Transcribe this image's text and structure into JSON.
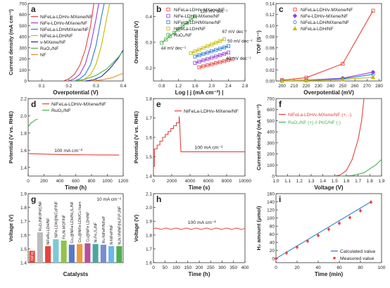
{
  "panels": [
    {
      "id": "a",
      "letter": "a",
      "type": "line",
      "ylabel": "Current density (mA cm⁻²)",
      "xlabel": "Overpotential (V)",
      "xlim": [
        0.05,
        0.4
      ],
      "ylim": [
        0,
        700
      ],
      "xticks": [
        0.1,
        0.2,
        0.3,
        0.4
      ],
      "xtick_labels": [
        "0.1",
        "0.2",
        "0.3",
        "0.4"
      ],
      "yticks": [
        0,
        100,
        200,
        300,
        400,
        500,
        600,
        700
      ],
      "ytick_labels": [
        "0",
        "100",
        "200",
        "300",
        "400",
        "500",
        "600",
        "700"
      ],
      "legend": "top-left",
      "series": [
        {
          "name": "NiFeLa-LDH/v-MXene/NF",
          "color": "#e8413c",
          "x": [
            0.18,
            0.2,
            0.22,
            0.24,
            0.26,
            0.28,
            0.292
          ],
          "y": [
            0,
            20,
            60,
            140,
            280,
            500,
            700
          ]
        },
        {
          "name": "NiFe-LDH/v-MXene/NF",
          "color": "#9a3fd0",
          "x": [
            0.2,
            0.22,
            0.24,
            0.26,
            0.28,
            0.3,
            0.31
          ],
          "y": [
            0,
            20,
            60,
            150,
            320,
            560,
            700
          ]
        },
        {
          "name": "NiFeLa-LDH/MXene/NF",
          "color": "#2d7ad6",
          "x": [
            0.22,
            0.24,
            0.26,
            0.28,
            0.3,
            0.32,
            0.33
          ],
          "y": [
            0,
            20,
            60,
            150,
            320,
            580,
            700
          ]
        },
        {
          "name": "NiFeLa-LDH/NF",
          "color": "#c7b800",
          "x": [
            0.24,
            0.26,
            0.28,
            0.3,
            0.32,
            0.34,
            0.35
          ],
          "y": [
            0,
            20,
            60,
            150,
            320,
            580,
            700
          ]
        },
        {
          "name": "v-MXene/NF",
          "color": "#1d2c9c",
          "x": [
            0.26,
            0.29,
            0.32,
            0.35,
            0.38,
            0.4
          ],
          "y": [
            0,
            10,
            40,
            110,
            200,
            280
          ]
        },
        {
          "name": "RuO₂/NF",
          "color": "#4caf50",
          "x": [
            0.22,
            0.26,
            0.3,
            0.34,
            0.38,
            0.4
          ],
          "y": [
            0,
            15,
            50,
            110,
            210,
            270
          ]
        },
        {
          "name": "NF",
          "color": "#f08c2e",
          "x": [
            0.28,
            0.32,
            0.36,
            0.4
          ],
          "y": [
            0,
            10,
            30,
            70
          ]
        }
      ]
    },
    {
      "id": "b",
      "letter": "b",
      "type": "scatter",
      "ylabel": "Overpotential (V)",
      "xlabel": "Log | j (mA cm⁻²) |",
      "xlim": [
        0.6,
        2.8
      ],
      "ylim": [
        0.15,
        0.45
      ],
      "xticks": [
        0.8,
        1.2,
        1.6,
        2.0,
        2.4,
        2.8
      ],
      "xtick_labels": [
        "0.8",
        "1.2",
        "1.6",
        "2.0",
        "2.4",
        "2.8"
      ],
      "yticks": [
        0.2,
        0.3,
        0.4
      ],
      "ytick_labels": [
        "0.2",
        "0.3",
        "0.4"
      ],
      "legend": "top-left",
      "series": [
        {
          "name": "NiFeLa-LDH/v-MXene/NF",
          "color": "#e8413c",
          "x": [
            1.7,
            1.8,
            1.9,
            2.0,
            2.1,
            2.2,
            2.3,
            2.4,
            2.5
          ],
          "y": [
            0.203,
            0.207,
            0.211,
            0.215,
            0.219,
            0.223,
            0.227,
            0.231,
            0.235
          ]
        },
        {
          "name": "NiFe-LDH/v-MXene/NF",
          "color": "#9a3fd0",
          "x": [
            1.6,
            1.7,
            1.8,
            1.9,
            2.0,
            2.1,
            2.2,
            2.3,
            2.4
          ],
          "y": [
            0.22,
            0.225,
            0.23,
            0.235,
            0.24,
            0.245,
            0.25,
            0.255,
            0.26
          ]
        },
        {
          "name": "NiFeLa-LDH/MXene/NF",
          "color": "#2d7ad6",
          "x": [
            1.6,
            1.7,
            1.8,
            1.9,
            2.0,
            2.1,
            2.2,
            2.3,
            2.4
          ],
          "y": [
            0.245,
            0.25,
            0.255,
            0.26,
            0.265,
            0.27,
            0.275,
            0.28,
            0.285
          ]
        },
        {
          "name": "NiFeLa-LDH/NF",
          "color": "#c7b800",
          "x": [
            1.5,
            1.6,
            1.7,
            1.8,
            1.9,
            2.0,
            2.1,
            2.2,
            2.3
          ],
          "y": [
            0.258,
            0.2647,
            0.2714,
            0.2781,
            0.2848,
            0.2915,
            0.2982,
            0.3049,
            0.3116
          ]
        },
        {
          "name": "RuO₂/NF",
          "color": "#4caf50",
          "x": [
            0.8,
            0.9,
            1.0,
            1.1,
            1.2,
            1.3,
            1.4,
            1.5,
            1.6
          ],
          "y": [
            0.298,
            0.3108,
            0.3236,
            0.3364,
            0.3492,
            0.362,
            0.3748,
            0.3876,
            0.4004
          ]
        }
      ],
      "annotations": [
        {
          "text": "128 mV dec⁻¹",
          "x": 1.72,
          "y": 0.415
        },
        {
          "text": "67 mV dec⁻¹",
          "x": 2.25,
          "y": 0.335
        },
        {
          "text": "50 mV dec⁻¹",
          "x": 2.38,
          "y": 0.298
        },
        {
          "text": "44 mV dec⁻¹",
          "x": 0.78,
          "y": 0.272
        },
        {
          "text": "40 mV dec⁻¹",
          "x": 2.34,
          "y": 0.232
        }
      ]
    },
    {
      "id": "c",
      "letter": "c",
      "type": "line",
      "ylabel": "TOF (S⁻¹)",
      "xlabel": "Overpotential (mV)",
      "xlim": [
        195,
        282
      ],
      "ylim": [
        0,
        0.14
      ],
      "xticks": [
        200,
        210,
        220,
        230,
        240,
        250,
        260,
        270,
        280
      ],
      "xtick_labels": [
        "200",
        "210",
        "220",
        "230",
        "240",
        "250",
        "260",
        "270",
        "280"
      ],
      "yticks": [
        0,
        0.02,
        0.04,
        0.06,
        0.08,
        0.1,
        0.12,
        0.14
      ],
      "ytick_labels": [
        "0.00",
        "0.02",
        "0.04",
        "0.06",
        "0.08",
        "0.10",
        "0.12",
        "0.14"
      ],
      "legend": "top-left",
      "series": [
        {
          "name": "NiFeLa-LDH/v-MXene/NF",
          "color": "#e8413c",
          "marker": "square",
          "x": [
            200,
            220,
            250,
            275
          ],
          "y": [
            0.0015,
            0.006,
            0.031,
            0.127
          ]
        },
        {
          "name": "NiFe-LDH/v-MXene/NF",
          "color": "#9a3fd0",
          "marker": "diamond",
          "x": [
            200,
            220,
            250,
            275
          ],
          "y": [
            0.0004,
            0.0015,
            0.005,
            0.016
          ]
        },
        {
          "name": "NiFeLa-LDH/MXene/NF",
          "color": "#2d7ad6",
          "marker": "circle",
          "x": [
            200,
            220,
            250,
            275
          ],
          "y": [
            0.0003,
            0.0012,
            0.004,
            0.012
          ]
        },
        {
          "name": "NiFeLa-LDH/NF",
          "color": "#c7b800",
          "marker": "triangle",
          "x": [
            200,
            220,
            250,
            275
          ],
          "y": [
            0.0002,
            0.0008,
            0.0025,
            0.007
          ]
        }
      ]
    },
    {
      "id": "d",
      "letter": "d",
      "type": "line",
      "ylabel": "Potential (V vs. RHE)",
      "xlabel": "Time (h)",
      "xlim": [
        0,
        1200
      ],
      "ylim": [
        1.3,
        2.2
      ],
      "xticks": [
        0,
        200,
        400,
        600,
        800,
        1000,
        1200
      ],
      "xtick_labels": [
        "0",
        "200",
        "400",
        "600",
        "800",
        "1000",
        "1200"
      ],
      "yticks": [
        1.4,
        1.6,
        1.8,
        2.0,
        2.2
      ],
      "ytick_labels": [
        "1.4",
        "1.6",
        "1.8",
        "2.0",
        "2.2"
      ],
      "legend": "top-left",
      "series": [
        {
          "name": "NiFeLa-LDH/v-MXene/NF",
          "color": "#e8413c",
          "x": [
            0,
            200,
            400,
            600,
            800,
            1000,
            1150
          ],
          "y": [
            1.56,
            1.555,
            1.55,
            1.548,
            1.546,
            1.545,
            1.544
          ]
        },
        {
          "name": "RuO₂/NF",
          "color": "#4caf50",
          "x": [
            0,
            20,
            40,
            60,
            80,
            100,
            120
          ],
          "y": [
            1.87,
            1.9,
            1.92,
            1.93,
            1.945,
            1.955,
            1.96
          ]
        }
      ],
      "annotations": [
        {
          "text": "100 mA cm⁻²",
          "x": 330,
          "y": 1.58
        }
      ]
    },
    {
      "id": "e",
      "letter": "e",
      "type": "line",
      "ylabel": "Potential (V vs. RHE)",
      "xlabel": "Time (s)",
      "xlim": [
        0,
        10000
      ],
      "ylim": [
        1.4,
        1.8
      ],
      "xticks": [
        0,
        2000,
        4000,
        6000,
        8000,
        10000
      ],
      "xtick_labels": [
        "0",
        "2000",
        "4000",
        "6000",
        "8000",
        "10000"
      ],
      "yticks": [
        1.4,
        1.5,
        1.6,
        1.7,
        1.8
      ],
      "ytick_labels": [
        "1.4",
        "1.5",
        "1.6",
        "1.7",
        "1.8"
      ],
      "legend": "top-right",
      "series": [
        {
          "name": "NiFeLa-LDH/v-MXene/NF",
          "color": "#e8413c",
          "x": [
            0,
            100,
            100,
            400,
            400,
            700,
            700,
            1000,
            1000,
            1300,
            1300,
            1600,
            1600,
            1900,
            1900,
            2200,
            2200,
            2500,
            2500,
            2800,
            2800,
            2820,
            3000,
            10000
          ],
          "y": [
            1.45,
            1.45,
            1.54,
            1.54,
            1.56,
            1.56,
            1.58,
            1.58,
            1.6,
            1.6,
            1.615,
            1.615,
            1.63,
            1.63,
            1.645,
            1.645,
            1.66,
            1.66,
            1.675,
            1.675,
            1.705,
            1.705,
            1.525,
            1.525
          ]
        }
      ],
      "annotations": [
        {
          "text": "100 mA cm⁻²",
          "x": 4500,
          "y": 1.54
        }
      ]
    },
    {
      "id": "f",
      "letter": "f",
      "type": "line",
      "ylabel": "Current density (mA cm⁻²)",
      "xlabel": "Voltage (V)",
      "xlim": [
        1.0,
        1.9
      ],
      "ylim": [
        0,
        700
      ],
      "xticks": [
        1.0,
        1.1,
        1.2,
        1.3,
        1.4,
        1.5,
        1.6,
        1.7,
        1.8,
        1.9
      ],
      "xtick_labels": [
        "1.0",
        "1.1",
        "1.2",
        "1.3",
        "1.4",
        "1.5",
        "1.6",
        "1.7",
        "1.8",
        "1.9"
      ],
      "yticks": [
        0,
        100,
        200,
        300,
        400,
        500,
        600,
        700
      ],
      "ytick_labels": [
        "0",
        "100",
        "200",
        "300",
        "400",
        "500",
        "600",
        "700"
      ],
      "legend": "top-left",
      "series": [
        {
          "name": "NiFeLa-LDH/v-MXene/NF (+, -)",
          "color": "#e8413c",
          "x": [
            1.5,
            1.55,
            1.6,
            1.65,
            1.7,
            1.73,
            1.75
          ],
          "y": [
            0,
            10,
            50,
            150,
            330,
            500,
            700
          ]
        },
        {
          "name": "RuO₂/NF (+) // Pt/C/NF (-)",
          "color": "#4caf50",
          "x": [
            1.55,
            1.65,
            1.75,
            1.85,
            1.9
          ],
          "y": [
            0,
            5,
            30,
            100,
            150
          ]
        }
      ]
    },
    {
      "id": "g",
      "letter": "g",
      "type": "bar",
      "ylabel": "Voltage (V)",
      "xlabel": "Catalysts",
      "ylim": [
        1.4,
        1.9
      ],
      "yticks": [
        1.4,
        1.5,
        1.6,
        1.7,
        1.8,
        1.9
      ],
      "ytick_labels": [
        "1.4",
        "1.5",
        "1.6",
        "1.7",
        "1.8",
        "1.9"
      ],
      "legend": "top-right",
      "annotations": [
        {
          "text": "10 mA cm⁻²"
        }
      ],
      "categories": [
        "NiFeLa-LDH/v-MXene/NF",
        "RuO₂/NF//Pt/C/NF",
        "NiFeRu-LDH/NF",
        "NiFe-LDH@NiCoP/NF",
        "Fe₃Ni-MOF/NF",
        "Co₅@NiFe-LDH/Ni₃S₂/NF",
        "Co₅@NiFe-LDH/Cu foam",
        "Cu@NiFe LDH/NF",
        "Ni-Fe₃S₄/NF",
        "Ru-NiFeP/NiFeP",
        "N-NiFeP/NF",
        "N₃N-VN/NF(Ni₃P)P₃/NF"
      ],
      "values": [
        1.486,
        1.62,
        1.52,
        1.57,
        1.56,
        1.53,
        1.535,
        1.54,
        1.535,
        1.53,
        1.52,
        1.52
      ],
      "colors": [
        "#e8413c",
        "#bcbcbc",
        "#e8413c",
        "#7dc9d6",
        "#8fc44a",
        "#5878c8",
        "#ec9b3c",
        "#b74f9c",
        "#4aa7a0",
        "#7c8ad0",
        "#6ab7e8",
        "#4caf50"
      ]
    },
    {
      "id": "h",
      "letter": "h",
      "type": "line",
      "ylabel": "Voltage (V)",
      "xlabel": "Time (h)",
      "xlim": [
        0,
        400
      ],
      "ylim": [
        1.6,
        2.1
      ],
      "xticks": [
        0,
        50,
        100,
        150,
        200,
        250,
        300,
        350,
        400
      ],
      "xtick_labels": [
        "0",
        "50",
        "100",
        "150",
        "200",
        "250",
        "300",
        "350",
        "400"
      ],
      "yticks": [
        1.6,
        1.7,
        1.8,
        1.9,
        2.0,
        2.1
      ],
      "ytick_labels": [
        "1.6",
        "1.7",
        "1.8",
        "1.9",
        "2.0",
        "2.1"
      ],
      "series": [
        {
          "name": "",
          "color": "#e8413c",
          "x": [
            0,
            50,
            100,
            150,
            200,
            250,
            300,
            350,
            400
          ],
          "y": [
            1.848,
            1.842,
            1.85,
            1.84,
            1.852,
            1.843,
            1.849,
            1.841,
            1.853
          ]
        }
      ],
      "annotations": [
        {
          "text": "100 mA cm⁻²",
          "x": 150,
          "y": 1.88
        }
      ]
    },
    {
      "id": "i",
      "letter": "i",
      "type": "line",
      "ylabel": "H₂ amount (μmol)",
      "xlabel": "Time (min)",
      "xlim": [
        0,
        100
      ],
      "ylim": [
        -10,
        160
      ],
      "xticks": [
        0,
        20,
        40,
        60,
        80,
        100
      ],
      "xtick_labels": [
        "0",
        "20",
        "40",
        "60",
        "80",
        "100"
      ],
      "yticks": [
        0,
        20,
        40,
        60,
        80,
        100,
        120,
        140,
        160
      ],
      "ytick_labels": [
        "0",
        "20",
        "40",
        "60",
        "80",
        "100",
        "120",
        "140",
        "160"
      ],
      "legend": "bottom-right",
      "series": [
        {
          "name": "Calculated value",
          "color": "#2d7ad6",
          "kind": "line",
          "x": [
            0,
            90
          ],
          "y": [
            0,
            140
          ]
        },
        {
          "name": "Measured value",
          "color": "#e8413c",
          "kind": "points",
          "x": [
            0,
            10,
            20,
            30,
            40,
            50,
            60,
            70,
            80,
            90
          ],
          "y": [
            0,
            14,
            28,
            43,
            57,
            72,
            87,
            101,
            118,
            139
          ]
        }
      ]
    }
  ]
}
